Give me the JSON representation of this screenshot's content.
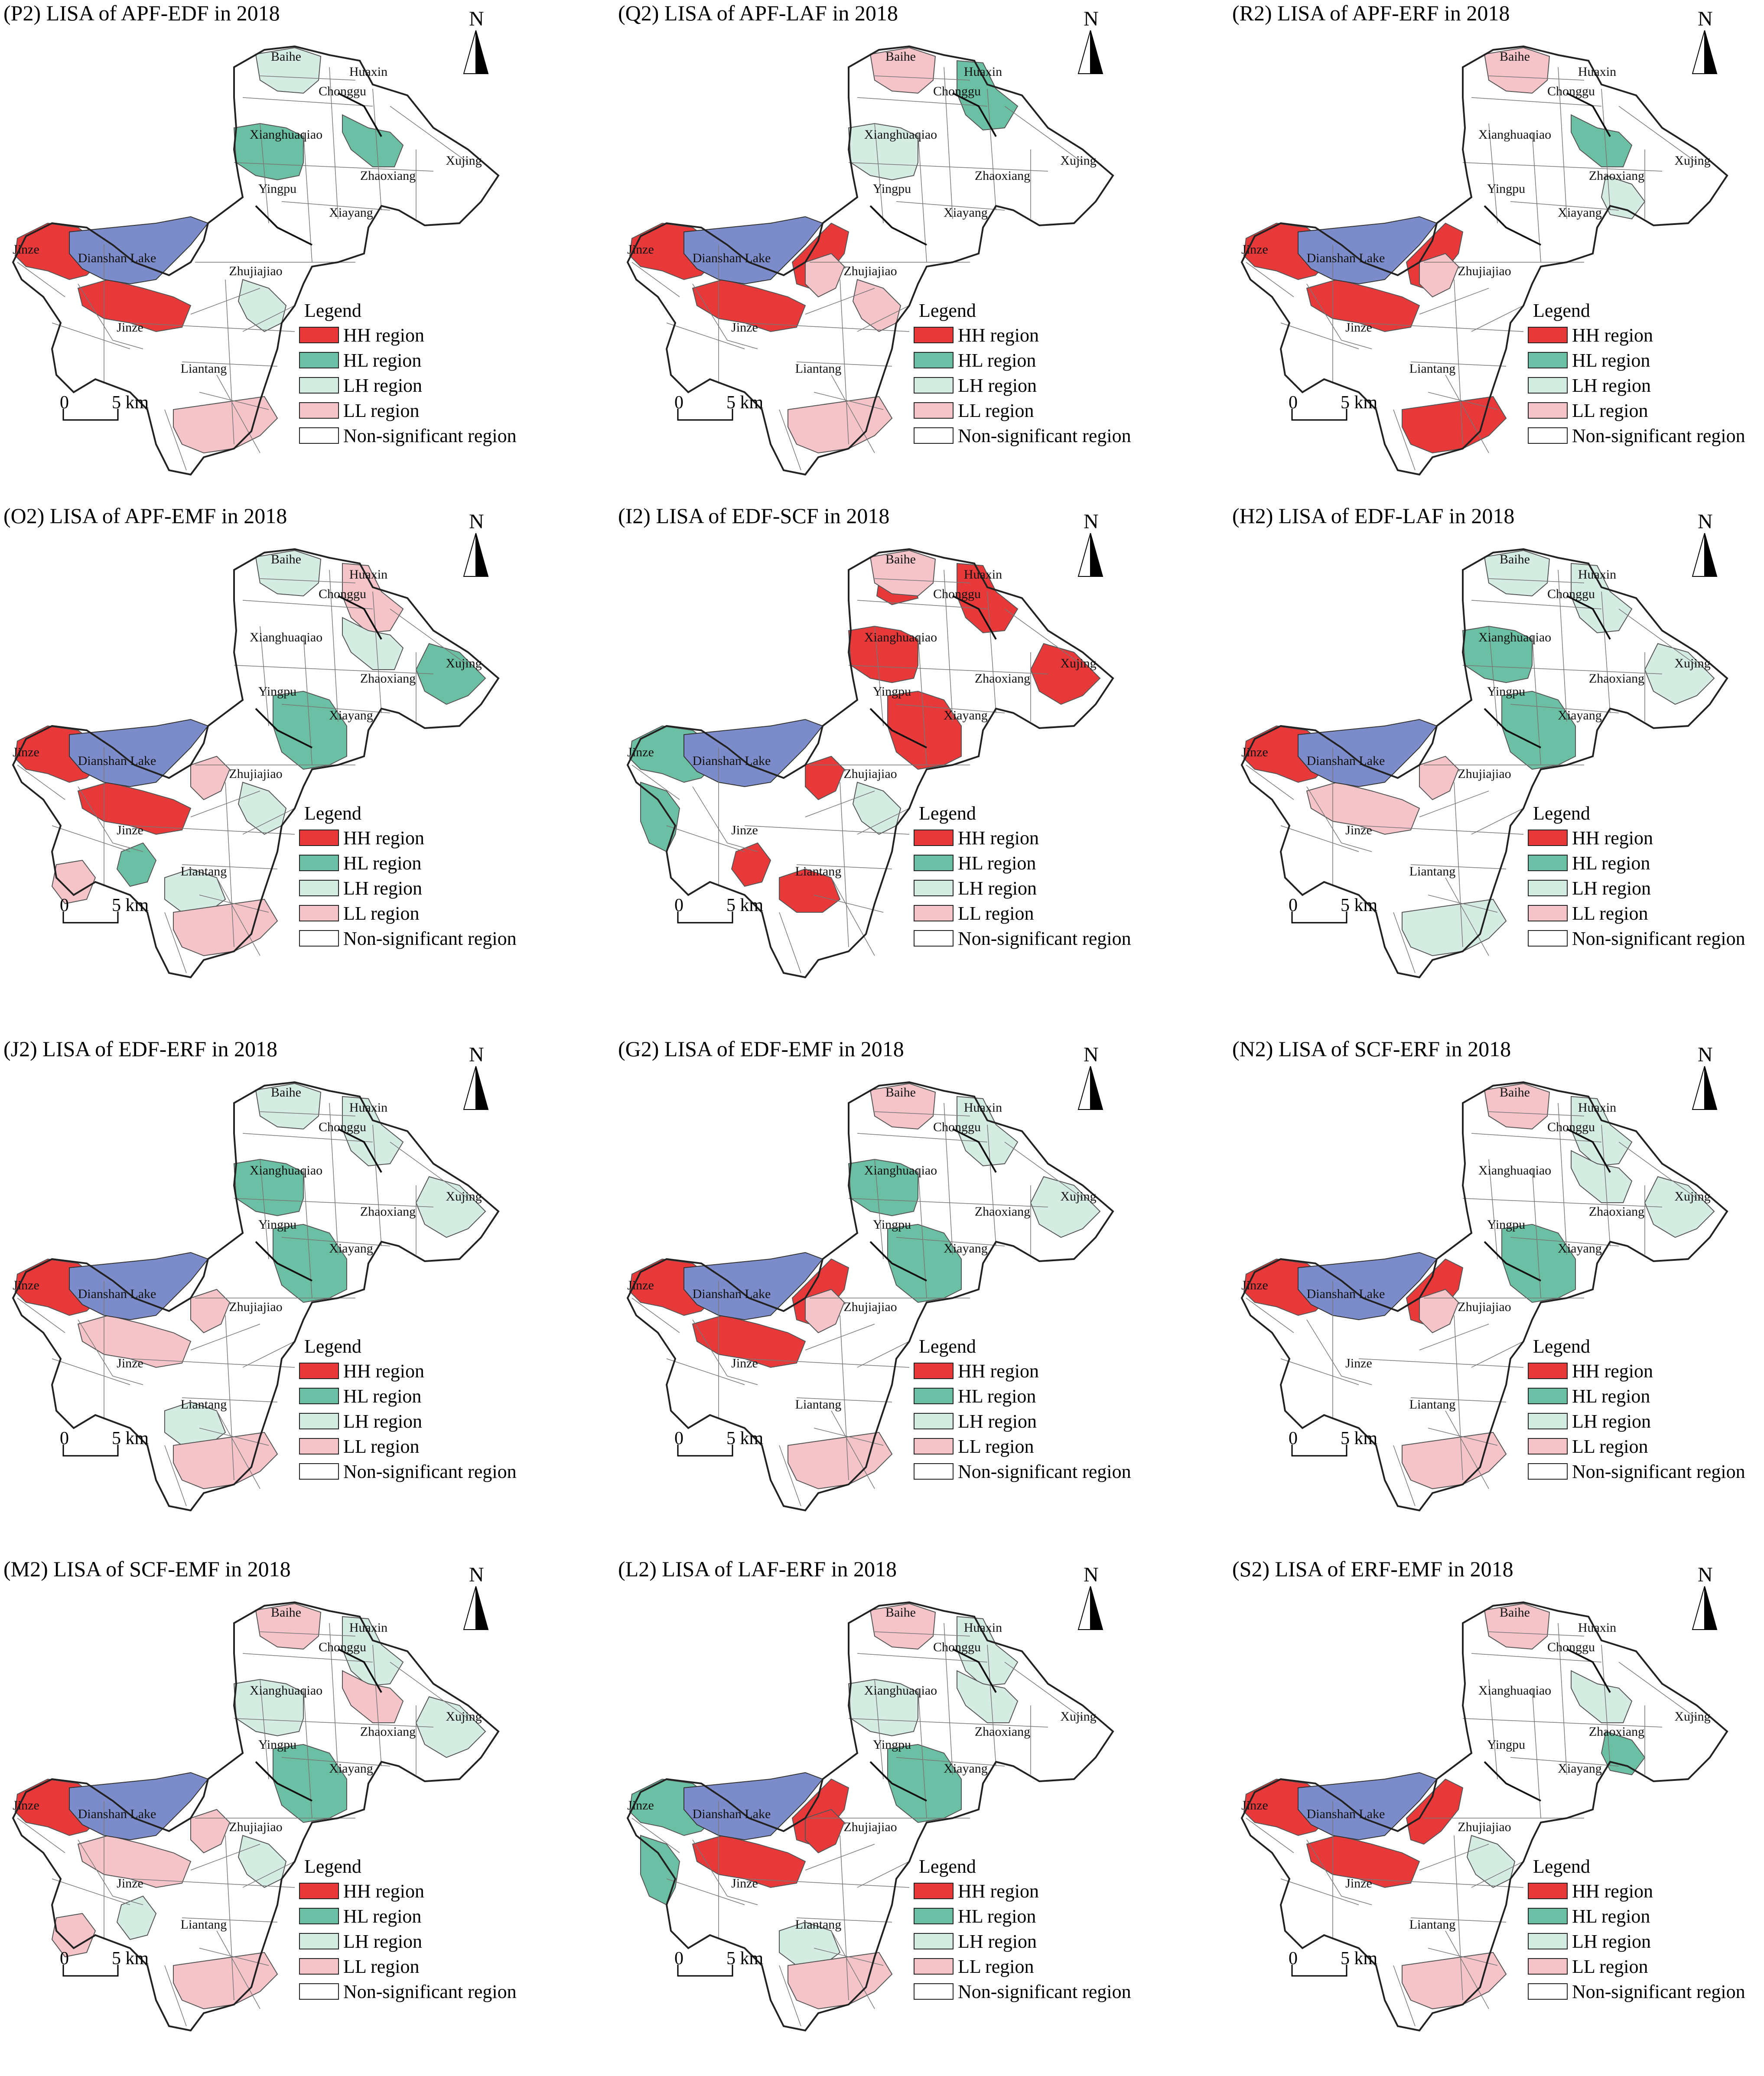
{
  "legend": {
    "title": "Legend",
    "items": [
      {
        "label": "HH region",
        "color": "#e8393a"
      },
      {
        "label": "HL region",
        "color": "#6bbfa4"
      },
      {
        "label": "LH region",
        "color": "#d4ece1"
      },
      {
        "label": "LL region",
        "color": "#f4c4c9"
      },
      {
        "label": "Non-significant region",
        "color": "#ffffff"
      }
    ]
  },
  "north_label": "N",
  "scale": {
    "zero": "0",
    "label": "5 km"
  },
  "lake_color": "#7c8ccb",
  "towns": {
    "baihe": "Baihe",
    "huaxin": "Huaxin",
    "chonggu": "Chonggu",
    "xianghuaqiao": "Xianghuaqiao",
    "xujing": "Xujing",
    "zhaoxiang": "Zhaoxiang",
    "yingpu": "Yingpu",
    "xiayang": "Xiayang",
    "jinze": "Jinze",
    "dianshan_lake": "Dianshan Lake",
    "zhujiajiao": "Zhujiajiao",
    "liantang": "Liantang"
  },
  "panels": [
    {
      "title": "(P2) LISA of APF-EDF in 2018",
      "regions": {
        "jinze_w": "HH",
        "lake_s": "HH",
        "xianghuaqiao": "HL",
        "chonggu_e": "HL",
        "baihe": "LH",
        "zhujiajiao_e": "LH",
        "liantang_s": "LL"
      }
    },
    {
      "title": "(Q2) LISA of APF-LAF in 2018",
      "regions": {
        "jinze_w": "HH",
        "lake_s": "HH",
        "lake_e": "HH",
        "huaxin": "HL",
        "baihe": "LL",
        "xianghuaqiao": "LH",
        "zhujiajiao_n": "LL",
        "zhujiajiao_e": "LL",
        "liantang_s": "LL"
      }
    },
    {
      "title": "(R2) LISA of APF-ERF in 2018",
      "regions": {
        "jinze_w": "HH",
        "lake_s": "HH",
        "lake_e": "HH",
        "liantang_s": "HH",
        "chonggu_e": "HL",
        "zhaoxiang": "LH",
        "baihe": "LL",
        "zhujiajiao_n": "LL"
      }
    },
    {
      "title": "(O2) LISA of APF-EMF in 2018",
      "regions": {
        "jinze_w": "HH",
        "lake_s": "HH",
        "xiayang": "HL",
        "xujing": "HL",
        "jinze_s": "HL",
        "baihe": "LH",
        "huaxin": "LL",
        "chonggu_e": "LH",
        "zhujiajiao_n": "LL",
        "zhujiajiao_e": "LH",
        "liantang_n": "LH",
        "liantang_s": "LL",
        "west_s": "LL"
      }
    },
    {
      "title": "(I2) LISA of EDF-SCF in 2018",
      "regions": {
        "baihe_s": "HH",
        "huaxin": "HH",
        "xianghuaqiao": "HH",
        "xiayang": "HH",
        "xujing": "HH",
        "zhujiajiao_n": "HH",
        "jinze_s": "HH",
        "liantang_n": "HH",
        "jinze_w": "HL",
        "lake_w": "HL",
        "baihe": "LL",
        "zhujiajiao_e": "LH"
      }
    },
    {
      "title": "(H2) LISA of EDF-LAF in 2018",
      "regions": {
        "jinze_w": "HH",
        "xianghuaqiao": "HL",
        "xiayang": "HL",
        "baihe": "LH",
        "huaxin": "LH",
        "xujing": "LH",
        "liantang_s": "LH",
        "lake_s": "LL",
        "zhujiajiao_n": "LL"
      }
    },
    {
      "title": "(J2) LISA of EDF-ERF in 2018",
      "regions": {
        "jinze_w": "HH",
        "xianghuaqiao": "HL",
        "xiayang": "HL",
        "baihe": "LH",
        "huaxin": "LH",
        "xujing": "LH",
        "liantang_n": "LH",
        "lake_s": "LL",
        "zhujiajiao_n": "LL",
        "liantang_s": "LL"
      }
    },
    {
      "title": "(G2) LISA of EDF-EMF in 2018",
      "regions": {
        "jinze_w": "HH",
        "lake_s": "HH",
        "lake_e": "HH",
        "xianghuaqiao": "HL",
        "xiayang": "HL",
        "huaxin": "LH",
        "xujing": "LH",
        "baihe": "LL",
        "zhujiajiao_n": "LL",
        "liantang_s": "LL"
      }
    },
    {
      "title": "(N2) LISA of SCF-ERF in 2018",
      "regions": {
        "jinze_w": "HH",
        "lake_e": "HH",
        "xiayang": "HL",
        "huaxin": "LH",
        "chonggu_e": "LH",
        "xujing": "LH",
        "baihe": "LL",
        "zhujiajiao_n": "LL",
        "liantang_s": "LL"
      }
    },
    {
      "title": "(M2) LISA of SCF-EMF in 2018",
      "regions": {
        "jinze_w": "HH",
        "xiayang": "HL",
        "xianghuaqiao": "LH",
        "huaxin": "LH",
        "xujing": "LH",
        "jinze_s": "LH",
        "zhujiajiao_e": "LH",
        "baihe": "LL",
        "chonggu_e": "LL",
        "west_s": "LL",
        "lake_s": "LL",
        "zhujiajiao_n": "LL",
        "liantang_s": "LL"
      }
    },
    {
      "title": "(L2) LISA of LAF-ERF in 2018",
      "regions": {
        "lake_s": "HH",
        "lake_e": "HH",
        "zhujiajiao_n": "HH",
        "jinze_w": "HL",
        "xiayang": "HL",
        "lake_w": "HL",
        "xianghuaqiao": "LH",
        "huaxin": "LH",
        "chonggu_e": "LH",
        "liantang_n": "LH",
        "baihe": "LL",
        "liantang_s": "LL"
      }
    },
    {
      "title": "(S2) LISA of ERF-EMF in 2018",
      "regions": {
        "jinze_w": "HH",
        "lake_s": "HH",
        "lake_e": "HH",
        "zhaoxiang": "HL",
        "chonggu_e": "LH",
        "zhujiajiao_e": "LH",
        "baihe": "LL",
        "liantang_s": "LL"
      }
    }
  ]
}
